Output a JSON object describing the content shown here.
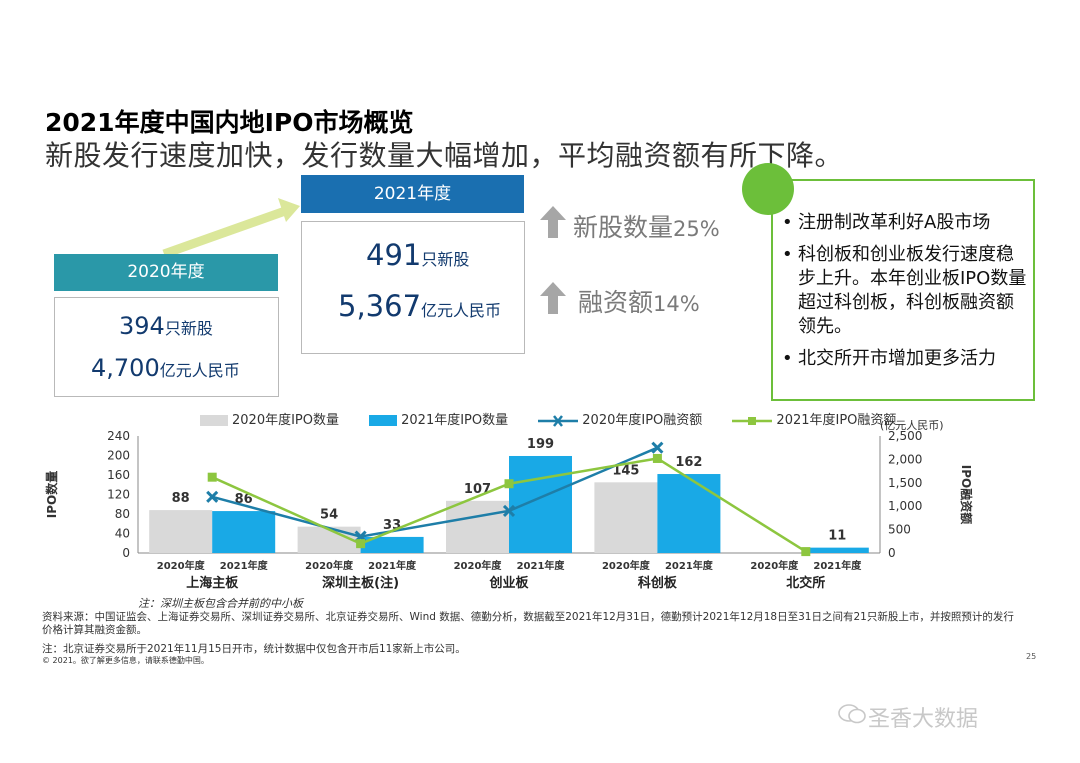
{
  "title": {
    "line1": "2021年度中国内地IPO市场概览",
    "line2": "新股发行速度加快，发行数量大幅增加，平均融资额有所下降。"
  },
  "summary": {
    "y2020": {
      "header": "2020年度",
      "count": "394",
      "count_unit": "只新股",
      "amount": "4,700",
      "amount_unit": "亿元人民币"
    },
    "y2021": {
      "header": "2021年度",
      "count": "491",
      "count_unit": "只新股",
      "amount": "5,367",
      "amount_unit": "亿元人民币"
    },
    "growth_count": {
      "label": "新股数量",
      "value": "25%"
    },
    "growth_amount": {
      "label": "融资额",
      "value": "14%"
    }
  },
  "highlights": [
    "注册制改革利好A股市场",
    "科创板和创业板发行速度稳步上升。本年创业板IPO数量超过科创板，科创板融资额领先。",
    "北交所开市增加更多活力"
  ],
  "colors": {
    "bar2020": "#d9d9d9",
    "bar2021": "#19a9e6",
    "line2020": "#1e7ea8",
    "line2021": "#8dc63f",
    "header2021": "#1a6fb0",
    "header2020": "#2a98a8",
    "accent_green": "#6cbf3a"
  },
  "chart_data": {
    "type": "bar",
    "categories": [
      "上海主板",
      "深圳主板(注)",
      "创业板",
      "科创板",
      "北交所"
    ],
    "sub_labels": [
      "2020年度",
      "2021年度"
    ],
    "series": [
      {
        "name": "2020年度IPO数量",
        "type": "bar",
        "axis": "left",
        "values": [
          88,
          54,
          107,
          145,
          0
        ],
        "labels": [
          "88",
          "54",
          "107",
          "145",
          ""
        ]
      },
      {
        "name": "2021年度IPO数量",
        "type": "bar",
        "axis": "left",
        "values": [
          86,
          33,
          199,
          162,
          11
        ],
        "labels": [
          "86",
          "33",
          "199",
          "162",
          "11"
        ]
      },
      {
        "name": "2020年度IPO融资额",
        "type": "line",
        "axis": "right",
        "marker": "x",
        "values": [
          1200,
          350,
          900,
          2250,
          null
        ]
      },
      {
        "name": "2021年度IPO融资额",
        "type": "line",
        "axis": "right",
        "marker": "square",
        "values": [
          1620,
          200,
          1480,
          2020,
          30
        ]
      }
    ],
    "ylabel": "IPO数量",
    "ylim": [
      0,
      240
    ],
    "yticks": [
      "0",
      "40",
      "80",
      "120",
      "160",
      "200",
      "240"
    ],
    "y2label": "IPO融资额",
    "y2unit": "(亿元人民币)",
    "y2lim": [
      0,
      2500
    ],
    "y2ticks": [
      "0",
      "500",
      "1,000",
      "1,500",
      "2,000",
      "2,500"
    ],
    "legend": "top"
  },
  "footnotes": {
    "chart_note": "注：深圳主板包含合并前的中小板",
    "source": "资料来源：中国证监会、上海证券交易所、深圳证券交易所、北京证券交易所、Wind 数据、德勤分析，数据截至2021年12月31日，德勤预计2021年12月18日至31日之间有21只新股上市，并按照预计的发行价格计算其融资金额。",
    "note": "注：北京证券交易所于2021年11月15日开市，统计数据中仅包含开市后11家新上市公司。",
    "copyright": "© 2021。欲了解更多信息，请联系德勤中国。",
    "page": "25"
  },
  "watermark": "圣香大数据"
}
